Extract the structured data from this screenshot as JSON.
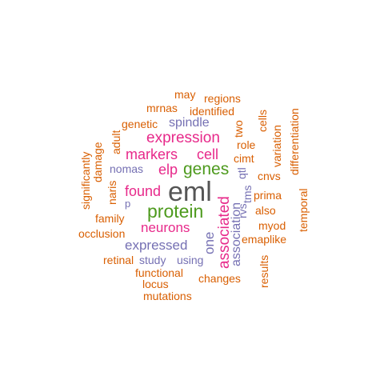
{
  "words": {
    "eml": "eml",
    "protein": "protein",
    "genes": "genes",
    "expression": "expression",
    "associated": "associated",
    "neurons": "neurons",
    "markers": "markers",
    "cell": "cell",
    "elp": "elp",
    "found": "found",
    "expressed": "expressed",
    "spindle": "spindle",
    "nomas": "nomas",
    "one": "one",
    "association": "association",
    "qtl": "qtl",
    "rvs": "rvs",
    "tms": "tms",
    "p": "p",
    "using": "using",
    "study": "study",
    "may": "may",
    "regions": "regions",
    "mrnas": "mrnas",
    "identified": "identified",
    "genetic": "genetic",
    "two": "two",
    "cells": "cells",
    "role": "role",
    "cimt": "cimt",
    "variation": "variation",
    "differentiation": "differentiation",
    "cnvs": "cnvs",
    "prima": "prima",
    "also": "also",
    "myod": "myod",
    "emaplike": "emaplike",
    "temporal": "temporal",
    "results": "results",
    "changes": "changes",
    "functional": "functional",
    "locus": "locus",
    "mutations": "mutations",
    "retinal": "retinal",
    "occlusion": "occlusion",
    "family": "family",
    "naris": "naris",
    "damage": "damage",
    "adult": "adult",
    "significantly": "significantly"
  },
  "colors": {
    "orange": "#d95f02",
    "green": "#4d9a1d",
    "pink": "#e7298a",
    "purple": "#7570b3",
    "gray": "#555555"
  }
}
